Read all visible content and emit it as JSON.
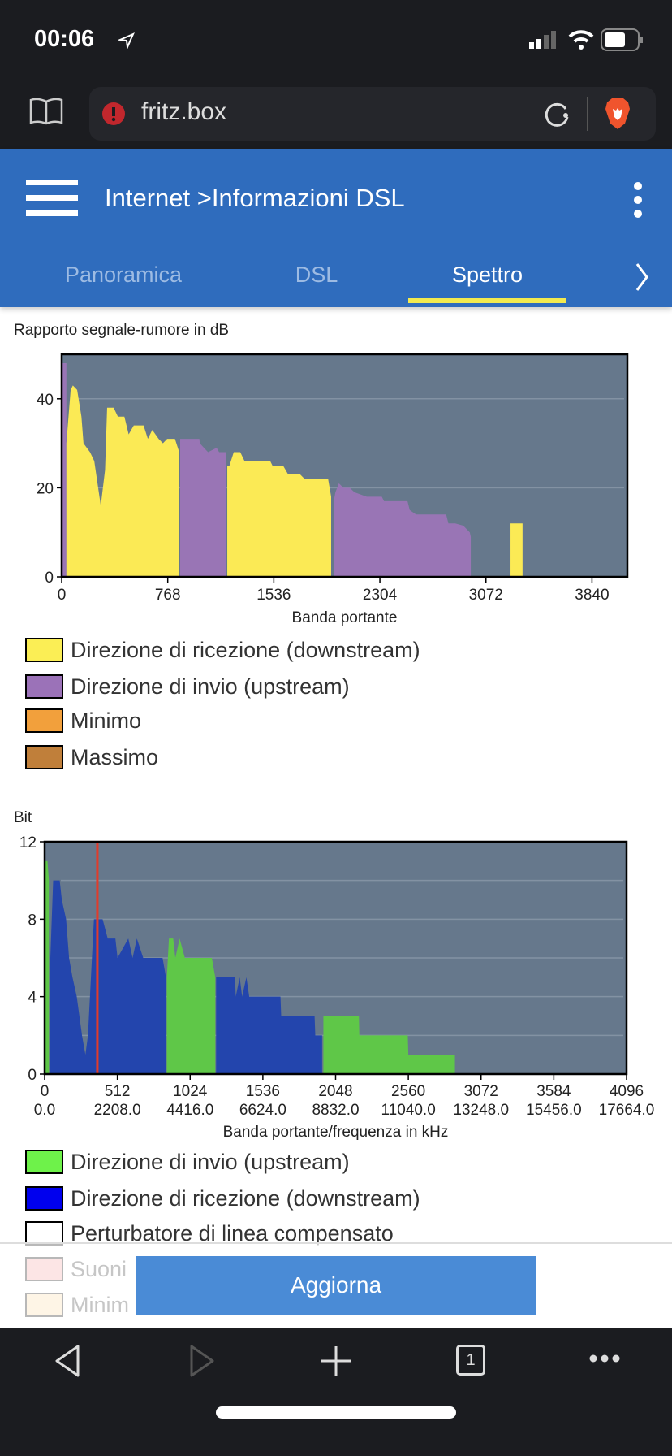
{
  "status_bar": {
    "time": "00:06"
  },
  "browser": {
    "url": "fritz.box",
    "tab_count": "1"
  },
  "header": {
    "breadcrumb_parent": "Internet",
    "breadcrumb_separator": ">",
    "title": "Informazioni DSL"
  },
  "tabs": [
    {
      "label": "Panoramica",
      "active": false
    },
    {
      "label": "DSL",
      "active": false
    },
    {
      "label": "Spettro",
      "active": true
    }
  ],
  "colors": {
    "header": "#2f6cbd",
    "active_tab_underline": "#f3ea4f",
    "plot_bg": "#66788c",
    "snr_downstream": "#fbea55",
    "snr_upstream": "#9975b5",
    "bit_upstream": "#5fc748",
    "bit_downstream": "#2345ad",
    "marker": "#e23b2a",
    "button": "#4a8bd6"
  },
  "chart_data": [
    {
      "type": "area",
      "title": "Rapporto segnale-rumore in dB",
      "xlabel": "Banda portante",
      "ylabel": "",
      "xlim": [
        0,
        4096
      ],
      "ylim": [
        0,
        50
      ],
      "xticks": [
        "0",
        "768",
        "1536",
        "2304",
        "3072",
        "3840"
      ],
      "xtick_values": [
        0,
        768,
        1536,
        2304,
        3072,
        3840
      ],
      "yticks": [
        "0",
        "20",
        "40"
      ],
      "ytick_values": [
        0,
        20,
        40
      ],
      "grid": true,
      "series": [
        {
          "name": "Direzione di invio (upstream)",
          "color": "#9975b5",
          "segments": [
            [
              [
                0,
                48
              ],
              [
                34,
                48
              ]
            ],
            [
              [
                858,
                31
              ],
              [
                920,
                31
              ],
              [
                997,
                31
              ],
              [
                1000,
                30
              ],
              [
                1060,
                28
              ],
              [
                1122,
                29
              ],
              [
                1140,
                28
              ],
              [
                1193,
                28
              ]
            ],
            [
              [
                1970,
                17
              ],
              [
                1982,
                19
              ],
              [
                2007,
                21
              ],
              [
                2040,
                20
              ],
              [
                2085,
                20
              ],
              [
                2120,
                19
              ],
              [
                2209,
                18
              ],
              [
                2318,
                18
              ],
              [
                2334,
                17
              ],
              [
                2504,
                17
              ],
              [
                2520,
                15
              ],
              [
                2566,
                14
              ],
              [
                2700,
                14
              ],
              [
                2784,
                14
              ],
              [
                2800,
                12
              ],
              [
                2850,
                12
              ],
              [
                2908,
                11.5
              ],
              [
                2955,
                10
              ],
              [
                2962,
                9
              ]
            ]
          ]
        },
        {
          "name": "Direzione di ricezione (downstream)",
          "color": "#fbea55",
          "segments": [
            [
              [
                34,
                30
              ],
              [
                65,
                42
              ],
              [
                81,
                43
              ],
              [
                112,
                42
              ],
              [
                143,
                36
              ],
              [
                158,
                30
              ],
              [
                205,
                28
              ],
              [
                236,
                26
              ],
              [
                283,
                16
              ],
              [
                314,
                24
              ],
              [
                329,
                38
              ],
              [
                376,
                38
              ],
              [
                407,
                36
              ],
              [
                454,
                36
              ],
              [
                485,
                32
              ],
              [
                522,
                34
              ],
              [
                593,
                34
              ],
              [
                624,
                31
              ],
              [
                656,
                33
              ],
              [
                702,
                31
              ],
              [
                733,
                30
              ],
              [
                764,
                31
              ],
              [
                820,
                31
              ],
              [
                851,
                28
              ]
            ],
            [
              [
                1199,
                25
              ],
              [
                1215,
                25
              ],
              [
                1246,
                28
              ],
              [
                1293,
                28
              ],
              [
                1324,
                26
              ],
              [
                1510,
                26
              ],
              [
                1526,
                25
              ],
              [
                1603,
                25
              ],
              [
                1640,
                23
              ],
              [
                1727,
                23
              ],
              [
                1759,
                22
              ],
              [
                1929,
                22
              ],
              [
                1951,
                18
              ]
            ],
            [
              [
                3250,
                12
              ],
              [
                3337,
                12
              ]
            ]
          ]
        }
      ],
      "legend": [
        "Direzione di ricezione (downstream)",
        "Direzione di invio (upstream)",
        "Minimo",
        "Massimo"
      ],
      "legend_colors": [
        "#fbee55",
        "#9b72b8",
        "#f2a03c",
        "#c07f3a"
      ]
    },
    {
      "type": "area",
      "title": "Bit",
      "xlabel": "Banda portante/frequenza in kHz",
      "xlim": [
        0,
        4096
      ],
      "ylim": [
        0,
        12
      ],
      "xticks": [
        "0",
        "512",
        "1024",
        "1536",
        "2048",
        "2560",
        "3072",
        "3584",
        "4096"
      ],
      "xticks_khz": [
        "0.0",
        "2208.0",
        "4416.0",
        "6624.0",
        "8832.0",
        "11040.0",
        "13248.0",
        "15456.0",
        "17664.0"
      ],
      "xtick_values": [
        0,
        512,
        1024,
        1536,
        2048,
        2560,
        3072,
        3584,
        4096
      ],
      "yticks": [
        "0",
        "4",
        "8",
        "12"
      ],
      "ytick_values": [
        0,
        4,
        8,
        12
      ],
      "grid_values": [
        2,
        4,
        6,
        8,
        10
      ],
      "marker_carrier": 371,
      "series": [
        {
          "name": "Direzione di invio (upstream)",
          "color": "#5fc748",
          "segments": [
            [
              [
                0,
                11
              ],
              [
                20,
                11
              ],
              [
                30,
                10
              ]
            ],
            [
              [
                860,
                5
              ],
              [
                875,
                7
              ],
              [
                905,
                7
              ],
              [
                920,
                6
              ],
              [
                950,
                7
              ],
              [
                987,
                6
              ],
              [
                1177,
                6
              ],
              [
                1201,
                5
              ]
            ],
            [
              [
                1962,
                3
              ],
              [
                2212,
                3
              ],
              [
                2215,
                2
              ],
              [
                2556,
                2
              ],
              [
                2560,
                1
              ],
              [
                2888,
                1
              ]
            ]
          ]
        },
        {
          "name": "Direzione di ricezione (downstream)",
          "color": "#2345ad",
          "segments": [
            [
              [
                40,
                6
              ],
              [
                60,
                10
              ],
              [
                106,
                10
              ],
              [
                121,
                9
              ],
              [
                151,
                8
              ],
              [
                172,
                6
              ],
              [
                196,
                5
              ],
              [
                226,
                4
              ],
              [
                263,
                2
              ],
              [
                287,
                1
              ],
              [
                305,
                2
              ],
              [
                347,
                8
              ],
              [
                408,
                8
              ],
              [
                444,
                7
              ],
              [
                498,
                7
              ],
              [
                513,
                6
              ],
              [
                589,
                7
              ],
              [
                619,
                6
              ],
              [
                649,
                7
              ],
              [
                694,
                6
              ],
              [
                830,
                6
              ],
              [
                854,
                5
              ]
            ],
            [
              [
                1207,
                5
              ],
              [
                1340,
                5
              ],
              [
                1345,
                4
              ],
              [
                1373,
                5
              ],
              [
                1390,
                4
              ],
              [
                1420,
                5
              ],
              [
                1440,
                4
              ],
              [
                1660,
                4
              ],
              [
                1665,
                3
              ],
              [
                1900,
                3
              ],
              [
                1905,
                2
              ],
              [
                1953,
                2
              ]
            ]
          ]
        }
      ],
      "legend": [
        "Direzione di invio (upstream)",
        "Direzione di ricezione (downstream)",
        "Perturbatore di linea compensato",
        "Suoni",
        "Minim"
      ],
      "legend_colors": [
        "#6ef24a",
        "#0000ee",
        "#ffffff",
        "#f5a3a3",
        "#fbd9a6"
      ]
    }
  ],
  "footer": {
    "refresh_button": "Aggiorna"
  }
}
